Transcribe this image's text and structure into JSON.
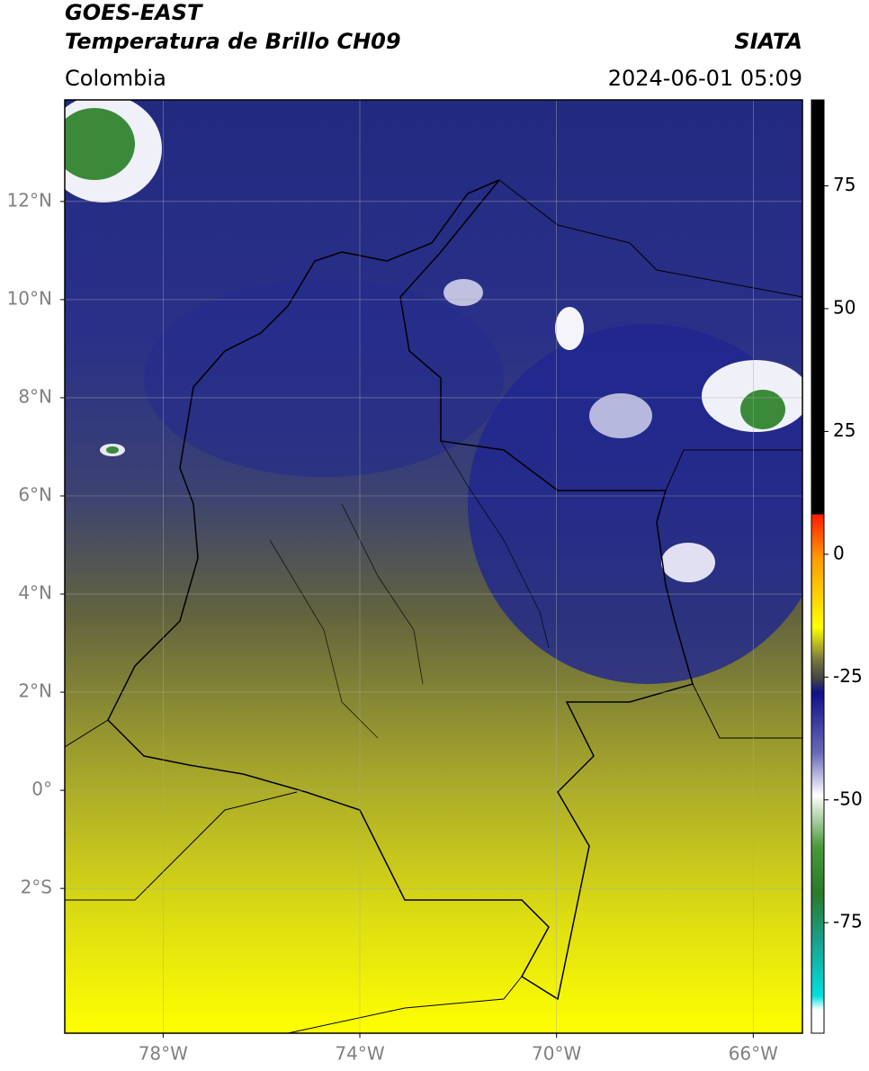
{
  "header": {
    "line1": "GOES-EAST",
    "line2": "Temperatura de Brillo CH09",
    "region": "Colombia",
    "source": "SIATA",
    "datetime": "2024-06-01 05:09"
  },
  "map": {
    "latlim": [
      -4.95,
      14.07
    ],
    "lonlim": [
      -80,
      -65
    ],
    "lat_ticks": [
      {
        "value": 12,
        "label": "12°N"
      },
      {
        "value": 10,
        "label": "10°N"
      },
      {
        "value": 8,
        "label": "8°N"
      },
      {
        "value": 6,
        "label": "6°N"
      },
      {
        "value": 4,
        "label": "4°N"
      },
      {
        "value": 2,
        "label": "2°N"
      },
      {
        "value": 0,
        "label": "0°"
      },
      {
        "value": -2,
        "label": "2°S"
      }
    ],
    "lon_ticks": [
      {
        "value": -78,
        "label": "78°W"
      },
      {
        "value": -74,
        "label": "74°W"
      },
      {
        "value": -70,
        "label": "70°W"
      },
      {
        "value": -66,
        "label": "66°W"
      }
    ]
  },
  "colorbar": {
    "lim": [
      -97.5,
      92.5
    ],
    "ticks": [
      75,
      50,
      25,
      0,
      -25,
      -50,
      -75
    ]
  }
}
